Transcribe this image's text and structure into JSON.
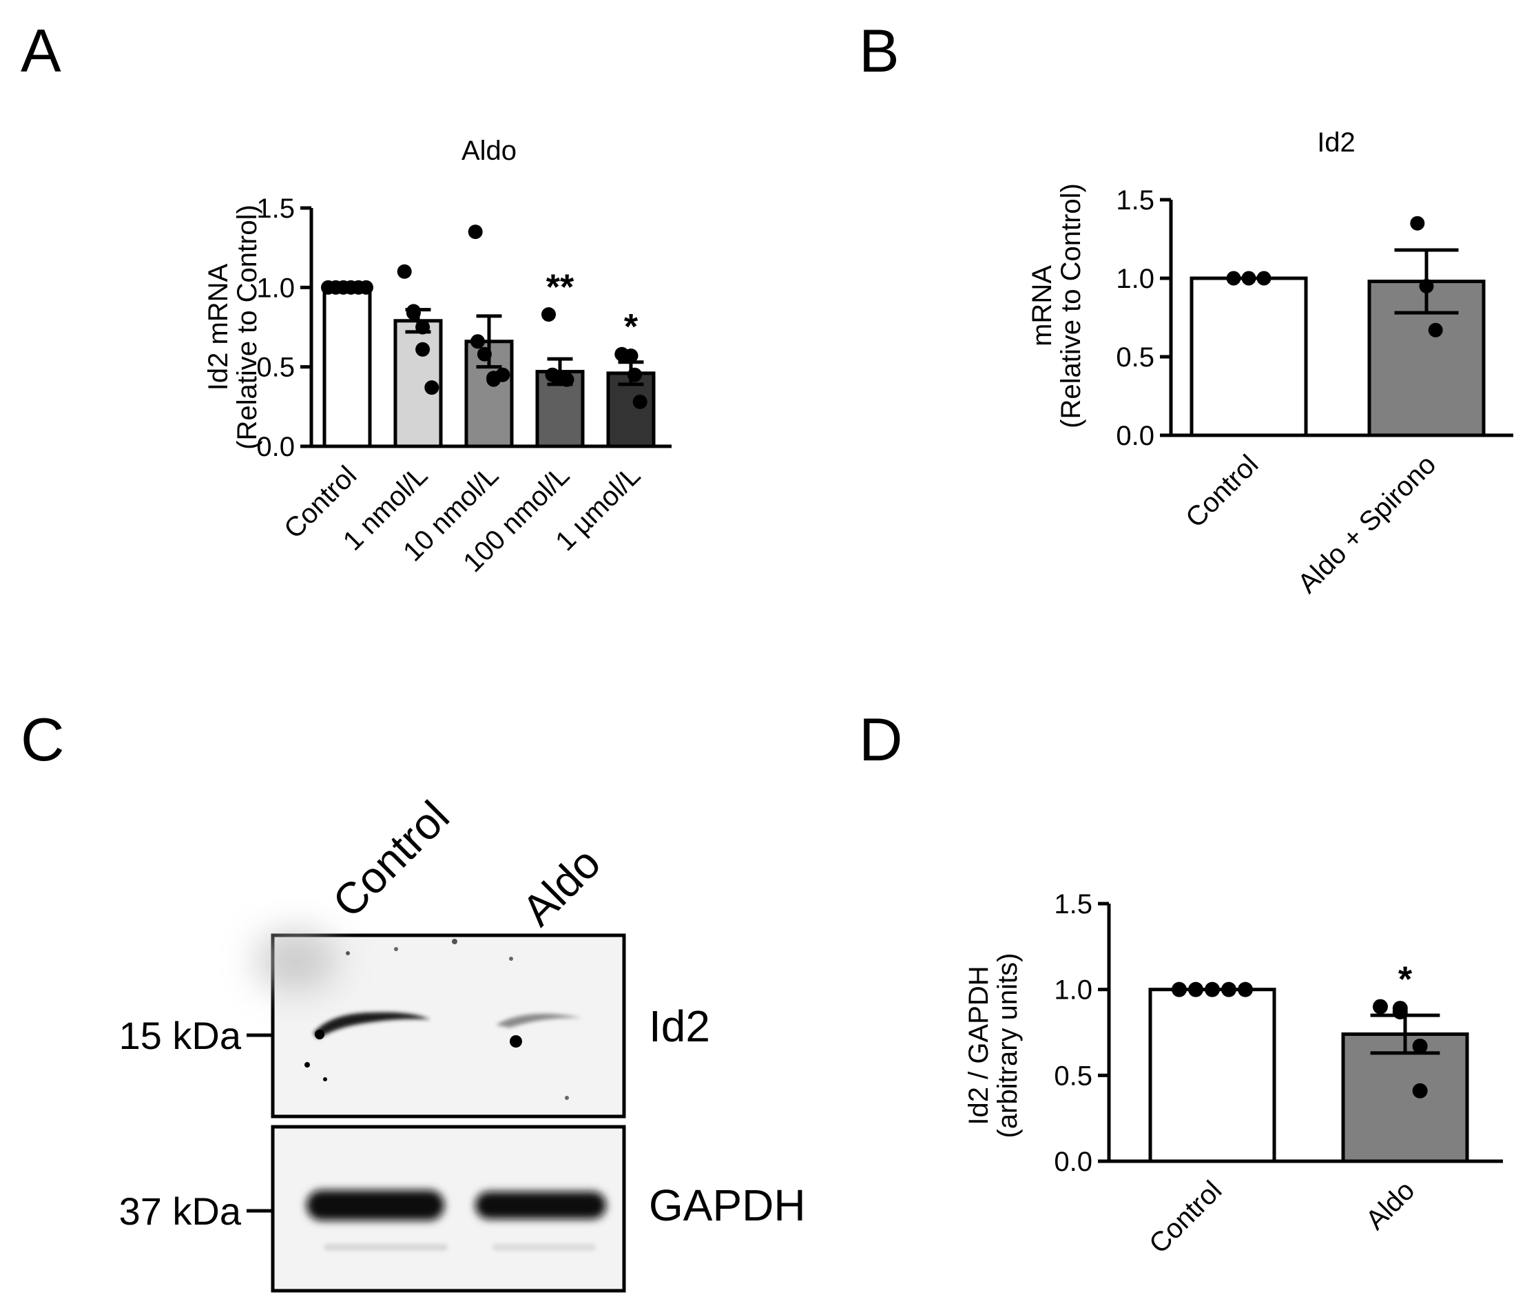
{
  "panels": {
    "A": {
      "letter": "A"
    },
    "B": {
      "letter": "B"
    },
    "C": {
      "letter": "C"
    },
    "D": {
      "letter": "D"
    }
  },
  "blot": {
    "lanes": [
      "Control",
      "Aldo"
    ],
    "rows": [
      {
        "marker": "15 kDa",
        "protein": "Id2"
      },
      {
        "marker": "37 kDa",
        "protein": "GAPDH"
      }
    ]
  },
  "chart_data": [
    {
      "panel": "A",
      "type": "bar",
      "title": "Aldo",
      "ylabel": [
        "Id2 mRNA",
        "(Relative to Control)"
      ],
      "xlabel": "",
      "ylim": [
        0,
        1.5
      ],
      "yticks": [
        "0.0",
        "0.5",
        "1.0",
        "1.5"
      ],
      "grid": false,
      "categories": [
        "Control",
        "1 nmol/L",
        "10 nmol/L",
        "100 nmol/L",
        "1 µmol/L"
      ],
      "values": [
        1.0,
        0.79,
        0.66,
        0.47,
        0.46
      ],
      "sem": [
        0,
        0.07,
        0.16,
        0.08,
        0.07
      ],
      "colors": [
        "#ffffff",
        "#d4d4d4",
        "#8a8a8a",
        "#5f5f5f",
        "#333333"
      ],
      "points": [
        [
          1.0,
          1.0,
          1.0,
          1.0,
          1.0,
          1.0
        ],
        [
          1.1,
          0.85,
          0.84,
          0.75,
          0.61,
          0.37
        ],
        [
          1.35,
          0.66,
          0.58,
          0.43,
          0.42,
          0.45
        ],
        [
          0.83,
          0.45,
          0.43,
          0.42,
          0.42
        ],
        [
          0.58,
          0.57,
          0.45,
          0.28
        ]
      ],
      "annotations": [
        "",
        "",
        "",
        "**",
        "*"
      ]
    },
    {
      "panel": "B",
      "type": "bar",
      "title": "Id2",
      "ylabel": [
        "mRNA",
        "(Relative to Control)"
      ],
      "xlabel": "",
      "ylim": [
        0,
        1.5
      ],
      "yticks": [
        "0.0",
        "0.5",
        "1.0",
        "1.5"
      ],
      "grid": false,
      "categories": [
        "Control",
        "Aldo + Spirono"
      ],
      "values": [
        1.0,
        0.98
      ],
      "sem": [
        0,
        0.2
      ],
      "colors": [
        "#ffffff",
        "#808080"
      ],
      "points": [
        [
          1.0,
          1.0,
          1.0
        ],
        [
          1.35,
          0.95,
          0.67
        ]
      ],
      "annotations": [
        "",
        ""
      ]
    },
    {
      "panel": "D",
      "type": "bar",
      "title": "",
      "ylabel": [
        "Id2 / GAPDH",
        "(arbitrary units)"
      ],
      "xlabel": "",
      "ylim": [
        0,
        1.5
      ],
      "yticks": [
        "0.0",
        "0.5",
        "1.0",
        "1.5"
      ],
      "grid": false,
      "categories": [
        "Control",
        "Aldo"
      ],
      "values": [
        1.0,
        0.74
      ],
      "sem": [
        0,
        0.11
      ],
      "colors": [
        "#ffffff",
        "#808080"
      ],
      "points": [
        [
          1.0,
          1.0,
          1.0,
          1.0,
          1.0
        ],
        [
          0.9,
          0.89,
          0.87,
          0.67,
          0.41
        ]
      ],
      "annotations": [
        "",
        "*"
      ]
    }
  ]
}
